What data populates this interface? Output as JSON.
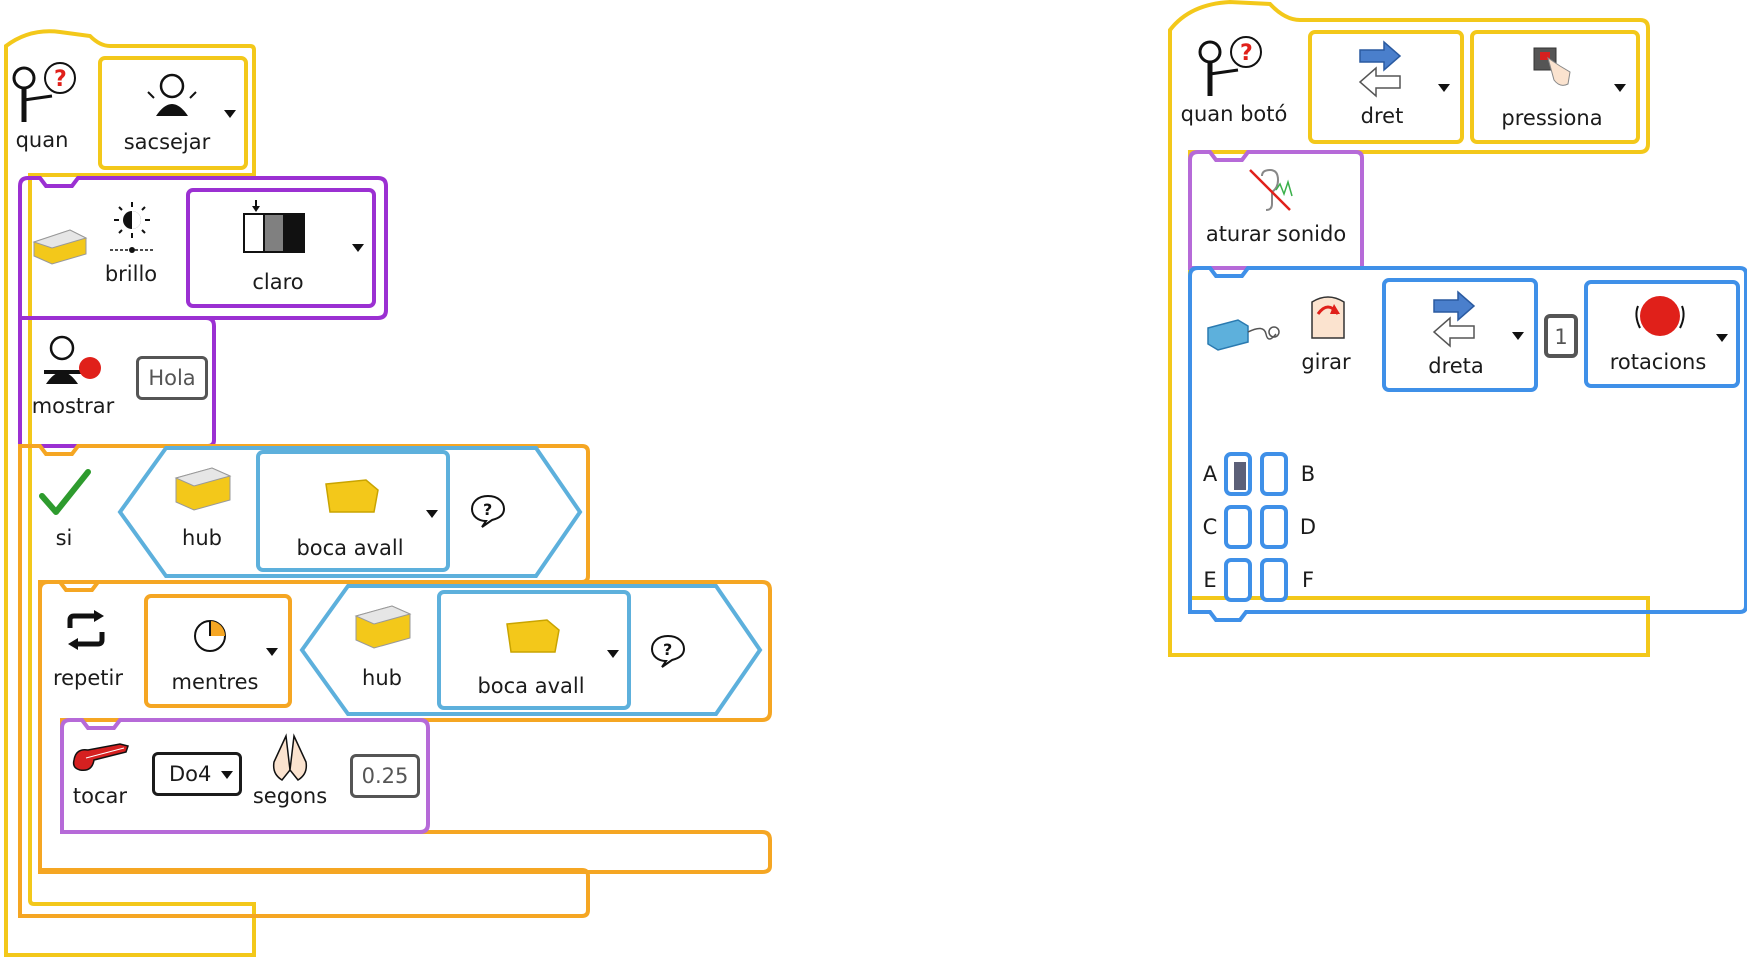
{
  "colors": {
    "event": "#f3c81a",
    "light": "#9b30d2",
    "control": "#f5a623",
    "sensor": "#5db0dc",
    "motor": "#3f90e8",
    "sound": "#b66ad8"
  },
  "script1": {
    "when": {
      "label": "quan",
      "option": "sacsejar"
    },
    "brightness": {
      "label": "brillo",
      "option": "claro"
    },
    "show": {
      "label": "mostrar",
      "value": "Hola"
    },
    "if": {
      "label": "si",
      "hub_label": "hub",
      "option": "boca avall"
    },
    "repeat": {
      "label": "repetir",
      "mode": "mentres",
      "hub_label": "hub",
      "option": "boca avall"
    },
    "play": {
      "label": "tocar",
      "note": "Do4",
      "unit": "segons",
      "duration": "0.25"
    }
  },
  "script2": {
    "when": {
      "label": "quan botó",
      "direction": "dret",
      "action": "pressiona"
    },
    "stop_sound": {
      "label": "aturar sonido"
    },
    "turn": {
      "label": "girar",
      "direction": "dreta",
      "amount": "1",
      "unit": "rotacions"
    },
    "ports": {
      "A": "A",
      "B": "B",
      "C": "C",
      "D": "D",
      "E": "E",
      "F": "F"
    },
    "selected_port": "A"
  }
}
